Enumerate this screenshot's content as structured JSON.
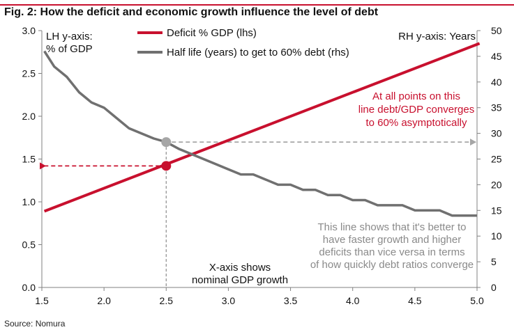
{
  "figure": {
    "title": "Fig. 2: How the deficit and economic growth influence the level of debt",
    "source": "Source: Nomura"
  },
  "chart_data": {
    "type": "line",
    "title": "Fig. 2: How the deficit and economic growth influence the level of debt",
    "xlabel": "",
    "ylabel_left": "% of GDP",
    "ylabel_right": "Years",
    "xlim": [
      1.5,
      5.0
    ],
    "ylim_left": [
      0.0,
      3.0
    ],
    "ylim_right": [
      0,
      50
    ],
    "x_ticks": [
      "1.5",
      "2.0",
      "2.5",
      "3.0",
      "3.5",
      "4.0",
      "4.5",
      "5.0"
    ],
    "y_left_ticks": [
      "0.0",
      "0.5",
      "1.0",
      "1.5",
      "2.0",
      "2.5",
      "3.0"
    ],
    "y_right_ticks": [
      "0",
      "5",
      "10",
      "15",
      "20",
      "25",
      "30",
      "35",
      "40",
      "45",
      "50"
    ],
    "grid": false,
    "legend_position": "top-center",
    "series": [
      {
        "name": "Deficit % GDP (lhs)",
        "axis": "left",
        "color": "#c8102e",
        "x": [
          1.52,
          5.02
        ],
        "values": [
          0.89,
          2.85
        ]
      },
      {
        "name": "Half life (years) to get to 60% debt (rhs)",
        "axis": "right",
        "color": "#707070",
        "x": [
          1.52,
          1.6,
          1.7,
          1.8,
          1.9,
          2.0,
          2.1,
          2.2,
          2.3,
          2.4,
          2.5,
          2.6,
          2.7,
          2.8,
          2.9,
          3.0,
          3.1,
          3.2,
          3.3,
          3.4,
          3.5,
          3.6,
          3.7,
          3.8,
          3.9,
          4.0,
          4.1,
          4.2,
          4.3,
          4.4,
          4.5,
          4.6,
          4.7,
          4.8,
          4.9,
          5.0
        ],
        "values": [
          46,
          43,
          41,
          38,
          36,
          35,
          33,
          31,
          30,
          29,
          28.3,
          27,
          26,
          25,
          24,
          23,
          22,
          22,
          21,
          20,
          20,
          19,
          19,
          18,
          18,
          17,
          17,
          16,
          16,
          16,
          15,
          15,
          15,
          14,
          14,
          14
        ]
      }
    ],
    "reference": {
      "x": 2.5,
      "deficit": 1.42,
      "half_life": 28.3
    },
    "labels": {
      "left_axis_line1": "LH y-axis:",
      "left_axis_line2": "% of GDP",
      "right_axis": "RH y-axis: Years",
      "xaxis_note_line1": "X-axis shows",
      "xaxis_note_line2": "nominal GDP growth"
    },
    "annotations": {
      "red_note": [
        "At all points on this",
        "line debt/GDP converges",
        "to 60% asymptotically"
      ],
      "grey_note": [
        "This line shows that it's better to",
        "have faster growth and higher",
        "deficits than vice versa in terms",
        "of how quickly debt ratios converge"
      ]
    },
    "colors": {
      "title_rule": "#c8102e",
      "axis": "#808080",
      "text": "#111111",
      "red_text": "#c8102e",
      "grey_text": "#8a8a8a",
      "reference_red": "#c8102e",
      "reference_grey": "#a6a6a6"
    }
  }
}
